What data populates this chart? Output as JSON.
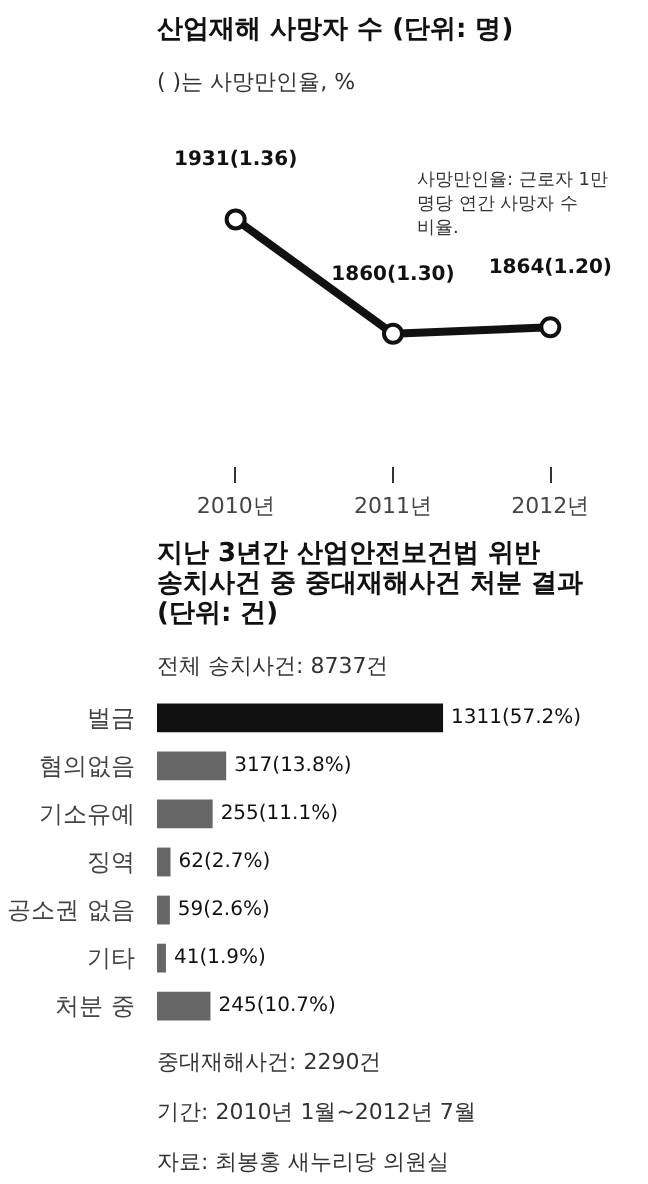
{
  "chart_data": [
    {
      "type": "line",
      "title": "산업재해 사망자 수 (단위: 명)",
      "subtitle": "( )는 사망만인율, %",
      "categories": [
        "2010년",
        "2011년",
        "2012년"
      ],
      "series": [
        {
          "color": "#111111",
          "values": [
            1931,
            1860,
            1864
          ],
          "value_labels": [
            "1931(1.36)",
            "1860(1.30)",
            "1864(1.20)"
          ]
        }
      ],
      "marker": "circle",
      "grid": false,
      "annotations": [
        "사망만인율: 근로자 1만 명당 연간 사망자 수 비율."
      ]
    },
    {
      "type": "bar",
      "orientation": "horizontal",
      "title": "지난 3년간 산업안전보건법 위반 송치사건 중 중대재해사건 처분 결과 (단위: 건)",
      "subtitle": "전체 송치사건: 8737건",
      "categories": [
        "벌금",
        "혐의없음",
        "기소유예",
        "징역",
        "공소권 없음",
        "기타",
        "처분 중"
      ],
      "values": [
        1311,
        317,
        255,
        62,
        59,
        41,
        245
      ],
      "colors": [
        "#111111",
        "#666666",
        "#666666",
        "#666666",
        "#666666",
        "#666666",
        "#666666"
      ],
      "value_labels": [
        "1311(57.2%)",
        "317(13.8%)",
        "255(11.1%)",
        "62(2.7%)",
        "59(2.6%)",
        "41(1.9%)",
        "245(10.7%)"
      ],
      "grid": false,
      "annotations": [
        "중대재해사건: 2290건",
        "기간: 2010년 1월~2012년 7월",
        "자료: 최봉홍 새누리당 의원실"
      ]
    }
  ]
}
